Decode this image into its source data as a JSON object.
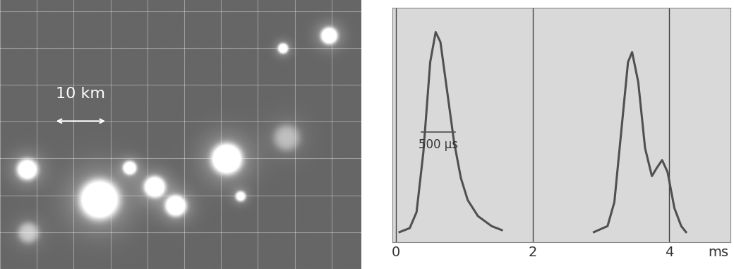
{
  "image": {
    "xlim": [
      0,
      68
    ],
    "ylim": [
      0,
      50.8
    ],
    "grid": true,
    "scale_bar": {
      "label": "10 km",
      "length": 10
    },
    "sources": [
      {
        "x": 62.0,
        "y": 44.1,
        "radius": 1.6,
        "brightness": 0.9
      },
      {
        "x": 53.3,
        "y": 41.7,
        "radius": 1.0,
        "brightness": 0.8
      },
      {
        "x": 42.7,
        "y": 20.8,
        "radius": 2.9,
        "brightness": 1.0
      },
      {
        "x": 54.0,
        "y": 24.8,
        "radius": 2.5,
        "brightness": 0.35
      },
      {
        "x": 18.7,
        "y": 13.1,
        "radius": 3.7,
        "brightness": 1.0
      },
      {
        "x": 29.1,
        "y": 15.5,
        "radius": 2.0,
        "brightness": 0.9
      },
      {
        "x": 33.1,
        "y": 11.9,
        "radius": 2.0,
        "brightness": 0.9
      },
      {
        "x": 24.4,
        "y": 19.1,
        "radius": 1.3,
        "brightness": 0.8
      },
      {
        "x": 5.1,
        "y": 18.8,
        "radius": 2.0,
        "brightness": 0.85
      },
      {
        "x": 5.3,
        "y": 6.8,
        "radius": 2.0,
        "brightness": 0.4
      },
      {
        "x": 45.3,
        "y": 13.7,
        "radius": 1.0,
        "brightness": 0.7
      }
    ]
  },
  "chart_data": {
    "type": "line",
    "xlabel": "ms",
    "xlim": [
      -0.05,
      4.9
    ],
    "xticks": [
      0,
      2,
      4
    ],
    "ylim": [
      -0.05,
      1.12
    ],
    "tick_labels": "x",
    "grid": true,
    "color": "#505050",
    "series": [
      {
        "x": [
          0.05,
          0.2,
          0.3,
          0.4,
          0.5,
          0.58,
          0.65,
          0.75,
          0.85,
          0.95,
          1.05,
          1.2,
          1.4,
          1.55
        ],
        "values": [
          0.0,
          0.02,
          0.1,
          0.4,
          0.85,
          1.0,
          0.95,
          0.7,
          0.45,
          0.27,
          0.16,
          0.08,
          0.03,
          0.01
        ]
      },
      {
        "x": [
          2.9,
          3.1,
          3.2,
          3.3,
          3.4,
          3.46,
          3.55,
          3.65,
          3.75,
          3.82,
          3.9,
          3.98,
          4.08,
          4.18,
          4.25
        ],
        "values": [
          0.0,
          0.03,
          0.15,
          0.5,
          0.85,
          0.9,
          0.75,
          0.42,
          0.28,
          0.32,
          0.36,
          0.3,
          0.12,
          0.03,
          0.0
        ]
      }
    ],
    "width_bar": {
      "x": [
        0.37,
        0.87
      ],
      "y": 0.5,
      "label": "500 µs"
    }
  }
}
